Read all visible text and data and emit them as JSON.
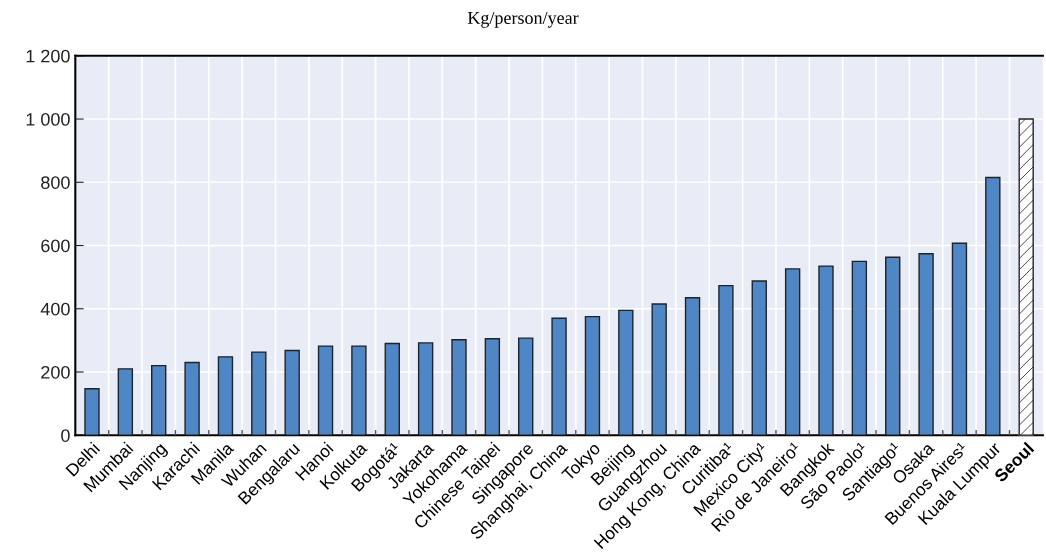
{
  "chart_data": {
    "type": "bar",
    "title": "Kg/person/year",
    "categories": [
      "Delhi",
      "Mumbai",
      "Nanjing",
      "Karachi",
      "Manila",
      "Wuhan",
      "Bengalaru",
      "Hanoi",
      "Kolkuta",
      "Bogotá¹",
      "Jakarta",
      "Yokohama",
      "Chinese Taipei",
      "Singapore",
      "Shanghai, China",
      "Tokyo",
      "Beijing",
      "Guangzhou",
      "Hong Kong, China",
      "Curitiba¹",
      "Mexico City¹",
      "Rio de Janeiro¹",
      "Bangkok",
      "São Paolo¹",
      "Santiago¹",
      "Osaka",
      "Buenos Aires¹",
      "Kuala Lumpur",
      "Seoul"
    ],
    "values": [
      147,
      210,
      220,
      230,
      248,
      263,
      268,
      282,
      282,
      290,
      292,
      302,
      305,
      307,
      370,
      375,
      395,
      415,
      435,
      473,
      488,
      526,
      535,
      550,
      563,
      574,
      607,
      815,
      1000
    ],
    "colors": [
      "#4f86c6",
      "#4f86c6",
      "#4f86c6",
      "#4f86c6",
      "#4f86c6",
      "#4f86c6",
      "#4f86c6",
      "#4f86c6",
      "#4f86c6",
      "#4f86c6",
      "#4f86c6",
      "#4f86c6",
      "#4f86c6",
      "#4f86c6",
      "#4f86c6",
      "#4f86c6",
      "#4f86c6",
      "#4f86c6",
      "#4f86c6",
      "#4f86c6",
      "#4f86c6",
      "#4f86c6",
      "#4f86c6",
      "#4f86c6",
      "#4f86c6",
      "#4f86c6",
      "#4f86c6",
      "#4f86c6",
      "#ffffff"
    ],
    "ylim": [
      0,
      1200
    ],
    "yticks": [
      0,
      200,
      400,
      600,
      800,
      {
        "value": 1000,
        "label": "1 000"
      },
      {
        "value": 1200,
        "label": "1 200"
      }
    ],
    "grid": true
  }
}
